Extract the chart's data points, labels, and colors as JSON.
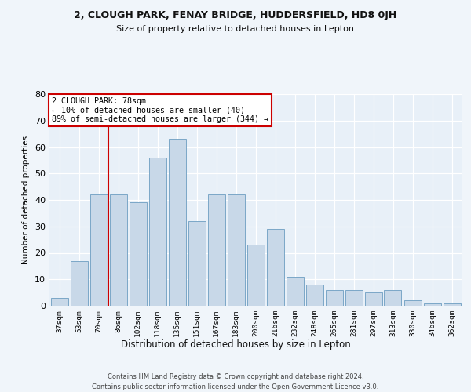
{
  "title1": "2, CLOUGH PARK, FENAY BRIDGE, HUDDERSFIELD, HD8 0JH",
  "title2": "Size of property relative to detached houses in Lepton",
  "xlabel": "Distribution of detached houses by size in Lepton",
  "ylabel": "Number of detached properties",
  "categories": [
    "37sqm",
    "53sqm",
    "70sqm",
    "86sqm",
    "102sqm",
    "118sqm",
    "135sqm",
    "151sqm",
    "167sqm",
    "183sqm",
    "200sqm",
    "216sqm",
    "232sqm",
    "248sqm",
    "265sqm",
    "281sqm",
    "297sqm",
    "313sqm",
    "330sqm",
    "346sqm",
    "362sqm"
  ],
  "values": [
    3,
    17,
    42,
    42,
    39,
    56,
    63,
    32,
    42,
    42,
    23,
    29,
    11,
    8,
    6,
    6,
    5,
    6,
    2,
    1,
    1
  ],
  "bar_color": "#c8d8e8",
  "bar_edge_color": "#7ba7c7",
  "vline_x": 2.5,
  "vline_color": "#cc0000",
  "annotation_text": "2 CLOUGH PARK: 78sqm\n← 10% of detached houses are smaller (40)\n89% of semi-detached houses are larger (344) →",
  "annotation_box_color": "#ffffff",
  "annotation_box_edge": "#cc0000",
  "ylim": [
    0,
    80
  ],
  "yticks": [
    0,
    10,
    20,
    30,
    40,
    50,
    60,
    70,
    80
  ],
  "footer1": "Contains HM Land Registry data © Crown copyright and database right 2024.",
  "footer2": "Contains public sector information licensed under the Open Government Licence v3.0.",
  "bg_color": "#f0f5fa",
  "plot_bg_color": "#e8f0f8"
}
